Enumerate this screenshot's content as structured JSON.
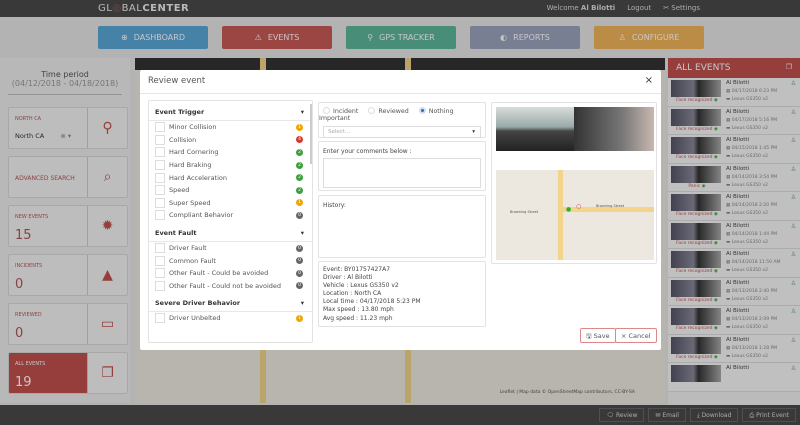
{
  "app": {
    "logo_left": "GL",
    "logo_mid": "BAL",
    "logo_bold": "CENTER",
    "welcome": "Welcome",
    "user": "Al Bilotti",
    "logout": "Logout",
    "settings": "Settings"
  },
  "nav": [
    {
      "label": "DASHBOARD",
      "color": "#5aa7d6"
    },
    {
      "label": "EVENTS",
      "color": "#c75a57"
    },
    {
      "label": "GPS TRACKER",
      "color": "#5db59a"
    },
    {
      "label": "REPORTS",
      "color": "#9aa3bd"
    },
    {
      "label": "CONFIGURE",
      "color": "#f0b45a"
    }
  ],
  "sidebar": {
    "time_period_label": "Time period",
    "time_period": "(04/12/2018 - 04/18/2018)",
    "region_label": "NORTH CA",
    "region_value": "North CA",
    "advanced_search": "ADVANCED SEARCH",
    "new_events_label": "NEW EVENTS",
    "new_events": "15",
    "incidents_label": "INCIDENTS",
    "incidents": "0",
    "reviewed_label": "REVIEWED",
    "reviewed": "0",
    "all_events_label": "ALL EVENTS",
    "all_events": "19"
  },
  "modal": {
    "title": "Review event",
    "groups": [
      {
        "title": "Event Trigger",
        "items": [
          {
            "label": "Minor Collision",
            "count": "1",
            "color": "#f0a500"
          },
          {
            "label": "Collision",
            "count": "4",
            "color": "#d9362b"
          },
          {
            "label": "Hard Cornering",
            "count": "2",
            "color": "#3aa03a"
          },
          {
            "label": "Hard Braking",
            "count": "2",
            "color": "#3aa03a"
          },
          {
            "label": "Hard Acceleration",
            "count": "2",
            "color": "#3aa03a"
          },
          {
            "label": "Speed",
            "count": "2",
            "color": "#3aa03a"
          },
          {
            "label": "Super Speed",
            "count": "1",
            "color": "#f0a500"
          },
          {
            "label": "Compliant Behavior",
            "count": "0",
            "color": "#666666"
          }
        ]
      },
      {
        "title": "Event Fault",
        "items": [
          {
            "label": "Driver Fault",
            "count": "0",
            "color": "#666666"
          },
          {
            "label": "Common Fault",
            "count": "0",
            "color": "#666666"
          },
          {
            "label": "Other Fault - Could be avoided",
            "count": "0",
            "color": "#666666"
          },
          {
            "label": "Other Fault - Could not be avoided",
            "count": "0",
            "color": "#666666"
          }
        ]
      },
      {
        "title": "Severe Driver Behavior",
        "items": [
          {
            "label": "Driver Unbelted",
            "count": "1",
            "color": "#f0a500"
          }
        ]
      }
    ],
    "status_options": [
      "Incident",
      "Reviewed",
      "Nothing Important"
    ],
    "status_selected": "Nothing Important",
    "select_placeholder": "Select...",
    "comments_label": "Enter your comments below :",
    "history_label": "History:",
    "details": [
      "Event: BY01757427A7",
      "Driver : Al Bilotti",
      "Vehicle : Lexus GS350 v2",
      "Location : North CA",
      "Local time : 04/17/2018 5:23 PM",
      "Max speed : 13.80 mph",
      "Avg speed : 11.23 mph"
    ],
    "map_streets": [
      "Browning Street",
      "Browning Street"
    ],
    "save": "Save",
    "cancel": "Cancel"
  },
  "map_attribution": "Leaflet | Map data © OpenStreetMap contributors, CC-BY-SA",
  "events_panel": {
    "title": "ALL EVENTS",
    "items": [
      {
        "name": "Al Bilotti",
        "date": "04/17/2018 6:23 PM",
        "vehicle": "Lexus GS350 v2",
        "caption": "Face recognized"
      },
      {
        "name": "Al Bilotti",
        "date": "04/17/2018 5:16 PM",
        "vehicle": "Lexus GS350 v2",
        "caption": "Face recognized"
      },
      {
        "name": "Al Bilotti",
        "date": "04/15/2018 1:45 PM",
        "vehicle": "Lexus GS350 v2",
        "caption": "Face recognized"
      },
      {
        "name": "Al Bilotti",
        "date": "04/14/2018 3:54 PM",
        "vehicle": "Lexus GS350 v2",
        "caption": "Panic"
      },
      {
        "name": "Al Bilotti",
        "date": "04/14/2018 2:20 PM",
        "vehicle": "Lexus GS350 v2",
        "caption": "Face recognized"
      },
      {
        "name": "Al Bilotti",
        "date": "04/14/2018 1:44 PM",
        "vehicle": "Lexus GS350 v2",
        "caption": "Face recognized"
      },
      {
        "name": "Al Bilotti",
        "date": "04/14/2018 11:50 AM",
        "vehicle": "Lexus GS350 v2",
        "caption": "Face recognized"
      },
      {
        "name": "Al Bilotti",
        "date": "04/13/2018 2:40 PM",
        "vehicle": "Lexus GS350 v2",
        "caption": "Face recognized"
      },
      {
        "name": "Al Bilotti",
        "date": "04/13/2018 2:09 PM",
        "vehicle": "Lexus GS350 v2",
        "caption": "Face recognized"
      },
      {
        "name": "Al Bilotti",
        "date": "04/13/2018 1:28 PM",
        "vehicle": "Lexus GS350 v2",
        "caption": "Face recognized"
      },
      {
        "name": "Al Bilotti",
        "date": "",
        "vehicle": "",
        "caption": ""
      }
    ]
  },
  "bottom": {
    "review": "Review",
    "email": "Email",
    "download": "Download",
    "print": "Print Event"
  }
}
